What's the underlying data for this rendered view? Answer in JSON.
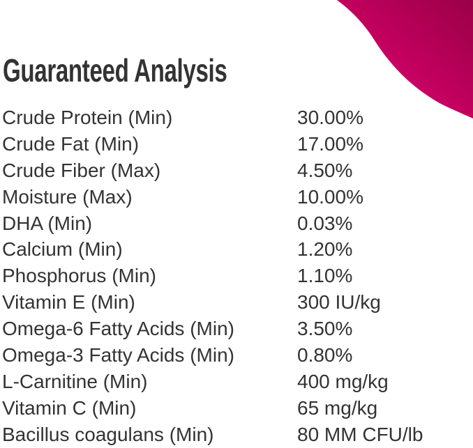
{
  "colors": {
    "accent": "#c2005e",
    "accent_dark": "#9a0048",
    "text": "#333333"
  },
  "title": "Guaranteed Analysis",
  "rows": [
    {
      "name": "Crude Protein (Min)",
      "value": "30.00%"
    },
    {
      "name": "Crude Fat (Min)",
      "value": "17.00%"
    },
    {
      "name": "Crude Fiber (Max)",
      "value": "4.50%"
    },
    {
      "name": "Moisture (Max)",
      "value": "10.00%"
    },
    {
      "name": "DHA (Min)",
      "value": "0.03%"
    },
    {
      "name": "Calcium (Min)",
      "value": "1.20%"
    },
    {
      "name": "Phosphorus (Min)",
      "value": "1.10%"
    },
    {
      "name": "Vitamin E (Min)",
      "value": "300 IU/kg"
    },
    {
      "name": "Omega-6 Fatty Acids (Min)",
      "value": "3.50%"
    },
    {
      "name": "Omega-3 Fatty Acids (Min)",
      "value": "0.80%"
    },
    {
      "name": "L-Carnitine (Min)",
      "value": "400 mg/kg"
    },
    {
      "name": "Vitamin C (Min)",
      "value": "65 mg/kg"
    },
    {
      "name": "Bacillus coagulans (Min)",
      "value": "80 MM CFU/lb"
    }
  ]
}
